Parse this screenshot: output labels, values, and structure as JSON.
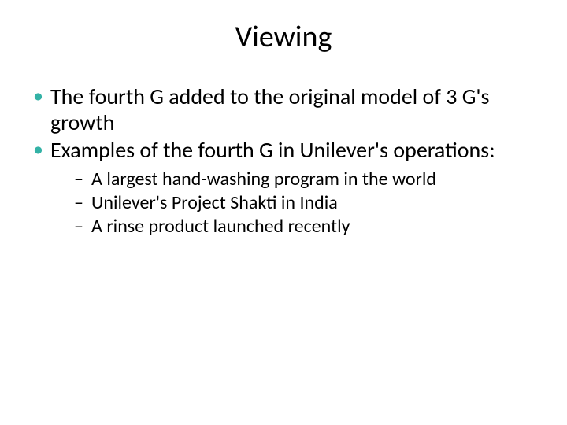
{
  "title": "Viewing",
  "bullets": [
    {
      "text": "The fourth G added to the original model of 3 G's growth"
    },
    {
      "text": "Examples of the fourth G in Unilever's operations:",
      "children": [
        {
          "text": "A largest hand-washing program in the world"
        },
        {
          "text": "Unilever's Project Shakti in India"
        },
        {
          "text": "A rinse product launched recently"
        }
      ]
    }
  ],
  "colors": {
    "background": "#ffffff",
    "title_text": "#000000",
    "body_text": "#000000",
    "bullet_level1": "#33b2a6",
    "bullet_level2": "#000000"
  },
  "typography": {
    "title_fontsize_pt": 38,
    "level1_fontsize_pt": 28,
    "level2_fontsize_pt": 24,
    "font_family": "Calibri"
  }
}
